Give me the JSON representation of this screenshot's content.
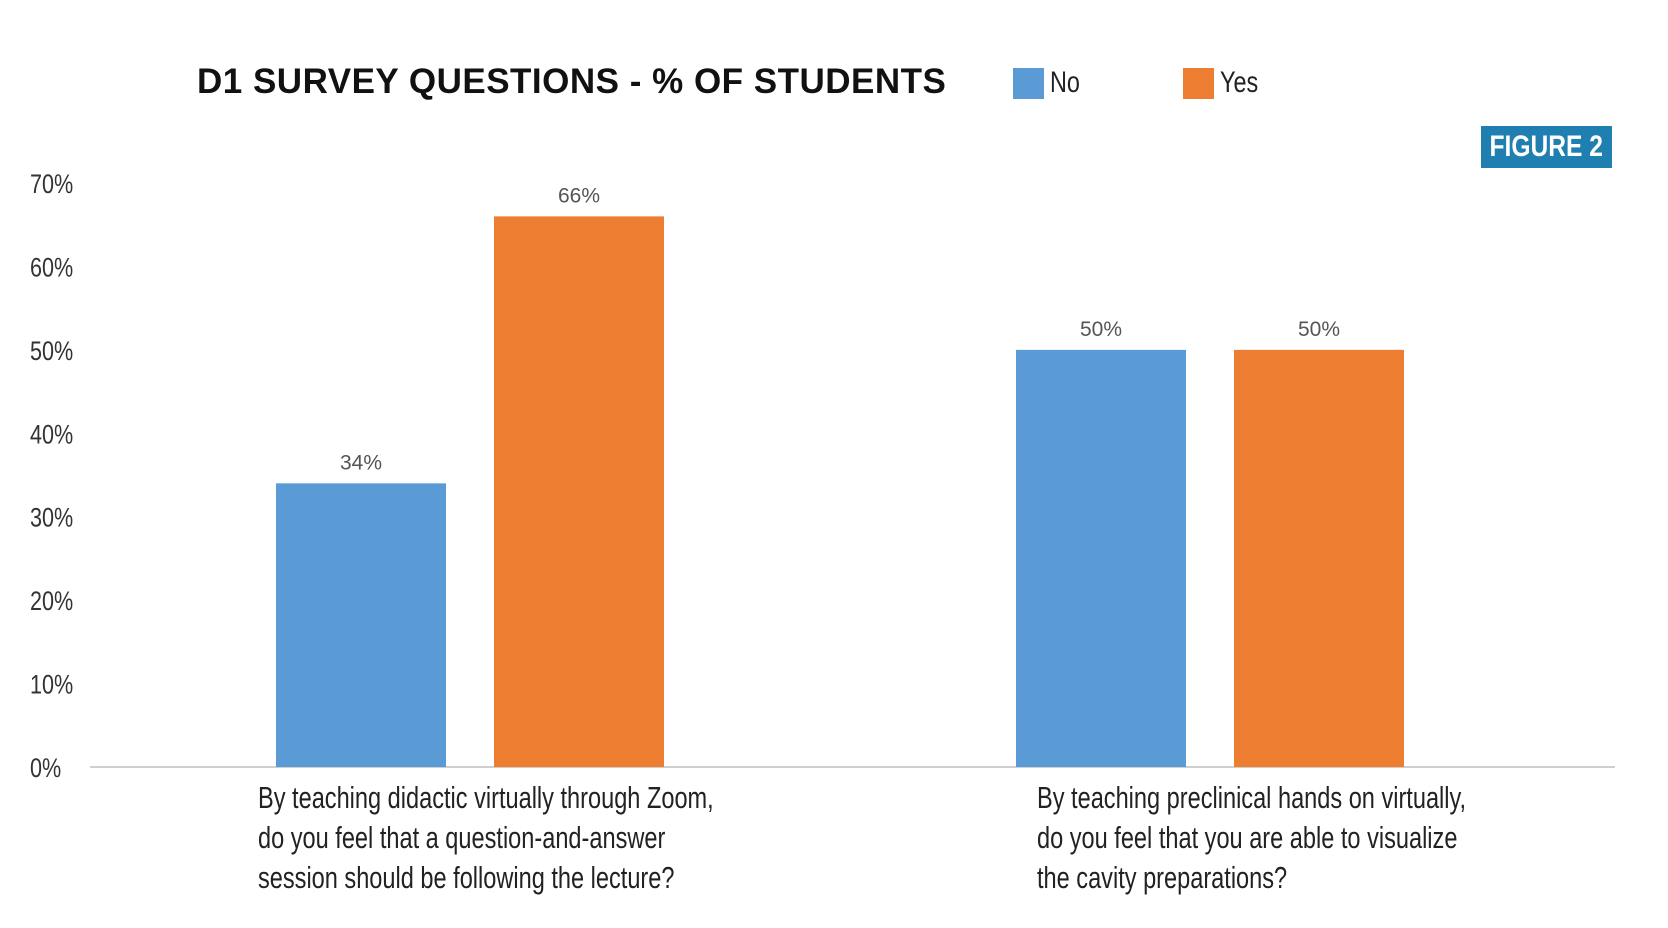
{
  "chart_data": {
    "type": "bar",
    "title": "D1 SURVEY QUESTIONS - % OF STUDENTS",
    "badge": "FIGURE 2",
    "categories": [
      [
        "By teaching didactic virtually through Zoom,",
        "do you feel that a question-and-answer",
        "session should be following the lecture?"
      ],
      [
        "By teaching preclinical hands on virtually,",
        "do you feel that you are able to visualize",
        "the cavity preparations?"
      ]
    ],
    "series": [
      {
        "name": "No",
        "color": "#5b9bd5",
        "values": [
          34,
          50
        ],
        "labels": [
          "34%",
          "50%"
        ]
      },
      {
        "name": "Yes",
        "color": "#ed7d31",
        "values": [
          66,
          50
        ],
        "labels": [
          "66%",
          "50%"
        ]
      }
    ],
    "y_ticks": [
      "0%",
      "10%",
      "20%",
      "30%",
      "40%",
      "50%",
      "60%",
      "70%"
    ],
    "ylim": [
      0,
      70
    ],
    "unit": "%",
    "grid": false,
    "legend_position": "top"
  }
}
